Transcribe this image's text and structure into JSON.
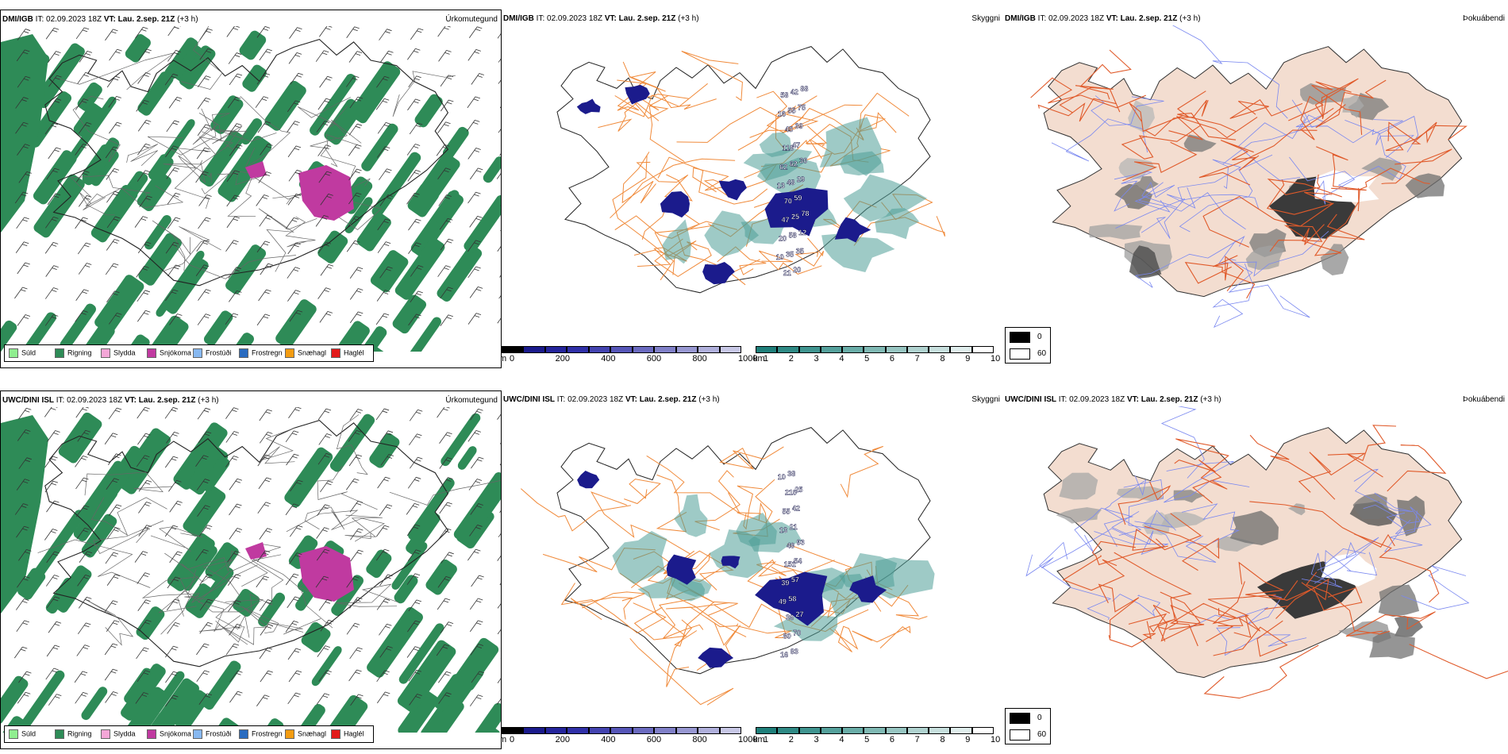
{
  "rows": [
    {
      "model": "DMI/IGB",
      "it_label": "IT:",
      "it_value": "02.09.2023 18Z",
      "vt_label": "VT:",
      "vt_value": "Lau. 2.sep. 21Z",
      "lead": "(+3 h)",
      "ceiling_labels": [
        "10",
        "13",
        "16",
        "20",
        "62",
        "58",
        "47",
        "118",
        "21",
        "70",
        "45",
        "35",
        "48",
        "55",
        "58",
        "62",
        "42",
        "25",
        "47",
        "20",
        "59",
        "39",
        "35",
        "29",
        "75",
        "12",
        "30",
        "88",
        "78"
      ]
    },
    {
      "model": "UWC/DINI ISL",
      "it_label": "IT:",
      "it_value": "02.09.2023 18Z",
      "vt_label": "VT:",
      "vt_value": "Lau. 2.sep. 21Z",
      "lead": "(+3 h)",
      "ceiling_labels": [
        "10",
        "49",
        "13",
        "16",
        "39",
        "55",
        "80",
        "151",
        "210",
        "36",
        "49",
        "38",
        "58",
        "21",
        "83",
        "57",
        "42",
        "70",
        "54",
        "25",
        "27",
        "93"
      ]
    }
  ],
  "fields": {
    "precip_type": "Úrkomutegund",
    "visibility": "Skyggni",
    "fog_index": "Þokuábendi"
  },
  "precip_legend": [
    {
      "label": "Súld",
      "color": "#90ee90"
    },
    {
      "label": "Rigning",
      "color": "#2e8b57"
    },
    {
      "label": "Slydda",
      "color": "#f4a6d7"
    },
    {
      "label": "Snjókoma",
      "color": "#c03aa0"
    },
    {
      "label": "Frostúði",
      "color": "#87b8f0"
    },
    {
      "label": "Frostregn",
      "color": "#2a6cc0"
    },
    {
      "label": "Snæhagl",
      "color": "#f39c12"
    },
    {
      "label": "Haglél",
      "color": "#e21b1b"
    }
  ],
  "ceiling_bar": {
    "unit": "m",
    "ticks": [
      "0",
      "200",
      "400",
      "600",
      "800",
      "1000"
    ],
    "colors": [
      "#000000",
      "#1b1b8c",
      "#25259c",
      "#3030a8",
      "#4444b0",
      "#5656b8",
      "#6b6bc0",
      "#8080c8",
      "#9898d2",
      "#b0b0dc",
      "#c8c8e6"
    ]
  },
  "visibility_bar": {
    "unit": "km",
    "ticks": [
      "1",
      "2",
      "3",
      "4",
      "5",
      "6",
      "7",
      "8",
      "9",
      "10"
    ],
    "colors": [
      "#1f7f7a",
      "#2f8a85",
      "#409590",
      "#55a19c",
      "#6aada8",
      "#80b9b4",
      "#98c6c2",
      "#b0d3d0",
      "#c8e0de",
      "#e0eeed",
      "#ffffff"
    ]
  },
  "fog_legend": [
    {
      "label": "0",
      "color": "#000000"
    },
    {
      "label": "60",
      "color": "#ffffff"
    }
  ],
  "colors": {
    "land_fog": "#f3ddd0",
    "roads": "#e05a2a",
    "roads_vis": "#f08a3a",
    "rivers": "#7a88f0",
    "rain": "#2e8b57",
    "snow": "#c03aa0",
    "ceiling_low": "#1b1b8c",
    "vis_low": "#4f9e97"
  }
}
